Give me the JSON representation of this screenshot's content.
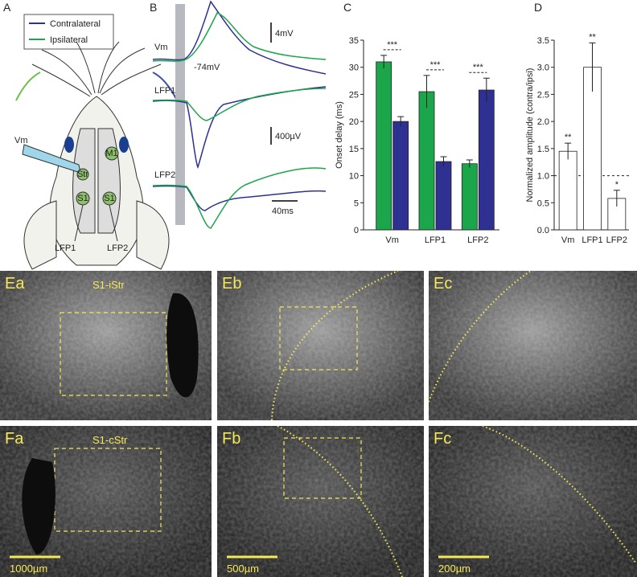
{
  "panel_a": {
    "label": "A",
    "electrode": "Vm",
    "regions": [
      "Str",
      "M1",
      "S1",
      "S1"
    ],
    "recordings": [
      "LFP1",
      "LFP2"
    ]
  },
  "panel_b": {
    "label": "B",
    "traces": [
      "Vm",
      "LFP1",
      "LFP2"
    ],
    "resting_potential": "-74mV",
    "scale_bars": [
      "4mV",
      "400µV",
      "40ms"
    ]
  },
  "chart_data": [
    {
      "type": "bar",
      "panel_label": "C",
      "y_label": "Onset delay (ms)",
      "categories": [
        "Vm",
        "LFP1",
        "LFP2"
      ],
      "series": [
        {
          "name": "Ipsilateral",
          "color": "#1ba64b",
          "values": [
            31,
            25.5,
            12.2
          ],
          "errors": [
            1.2,
            3,
            0.7
          ]
        },
        {
          "name": "Contralateral",
          "color": "#2e3192",
          "values": [
            20,
            12.6,
            25.8
          ],
          "errors": [
            0.9,
            0.9,
            2.2
          ]
        }
      ],
      "annotations": [
        "***",
        "***",
        "***"
      ],
      "ylim": [
        0,
        35
      ],
      "yticks": [
        0,
        5,
        10,
        15,
        20,
        25,
        30,
        35
      ]
    },
    {
      "type": "bar",
      "panel_label": "D",
      "y_label": "Normalized amplitude (contra/ipsi)",
      "categories": [
        "Vm",
        "LFP1",
        "LFP2"
      ],
      "color": "#ffffff",
      "values": [
        1.45,
        3.0,
        0.58
      ],
      "errors": [
        0.15,
        0.45,
        0.15
      ],
      "annotations": [
        "**",
        "**",
        "*"
      ],
      "reference_line": 1,
      "ylim": [
        0,
        3.5
      ],
      "yticks": [
        {
          "value": 0,
          "label": "0.0"
        },
        0.5,
        {
          "value": 1,
          "label": "1.0"
        },
        1.5,
        {
          "value": 2,
          "label": "2.0"
        },
        2.5,
        {
          "value": 3,
          "label": "3.0"
        },
        3.5
      ]
    }
  ],
  "panel_e": {
    "images": [
      {
        "label": "Ea",
        "region": "S1-iStr"
      },
      {
        "label": "Eb"
      },
      {
        "label": "Ec"
      }
    ]
  },
  "panel_f": {
    "images": [
      {
        "label": "Fa",
        "region": "S1-cStr",
        "scale_bar": "1000µm"
      },
      {
        "label": "Fb",
        "scale_bar": "500µm"
      },
      {
        "label": "Fc",
        "scale_bar": "200µm"
      }
    ]
  }
}
